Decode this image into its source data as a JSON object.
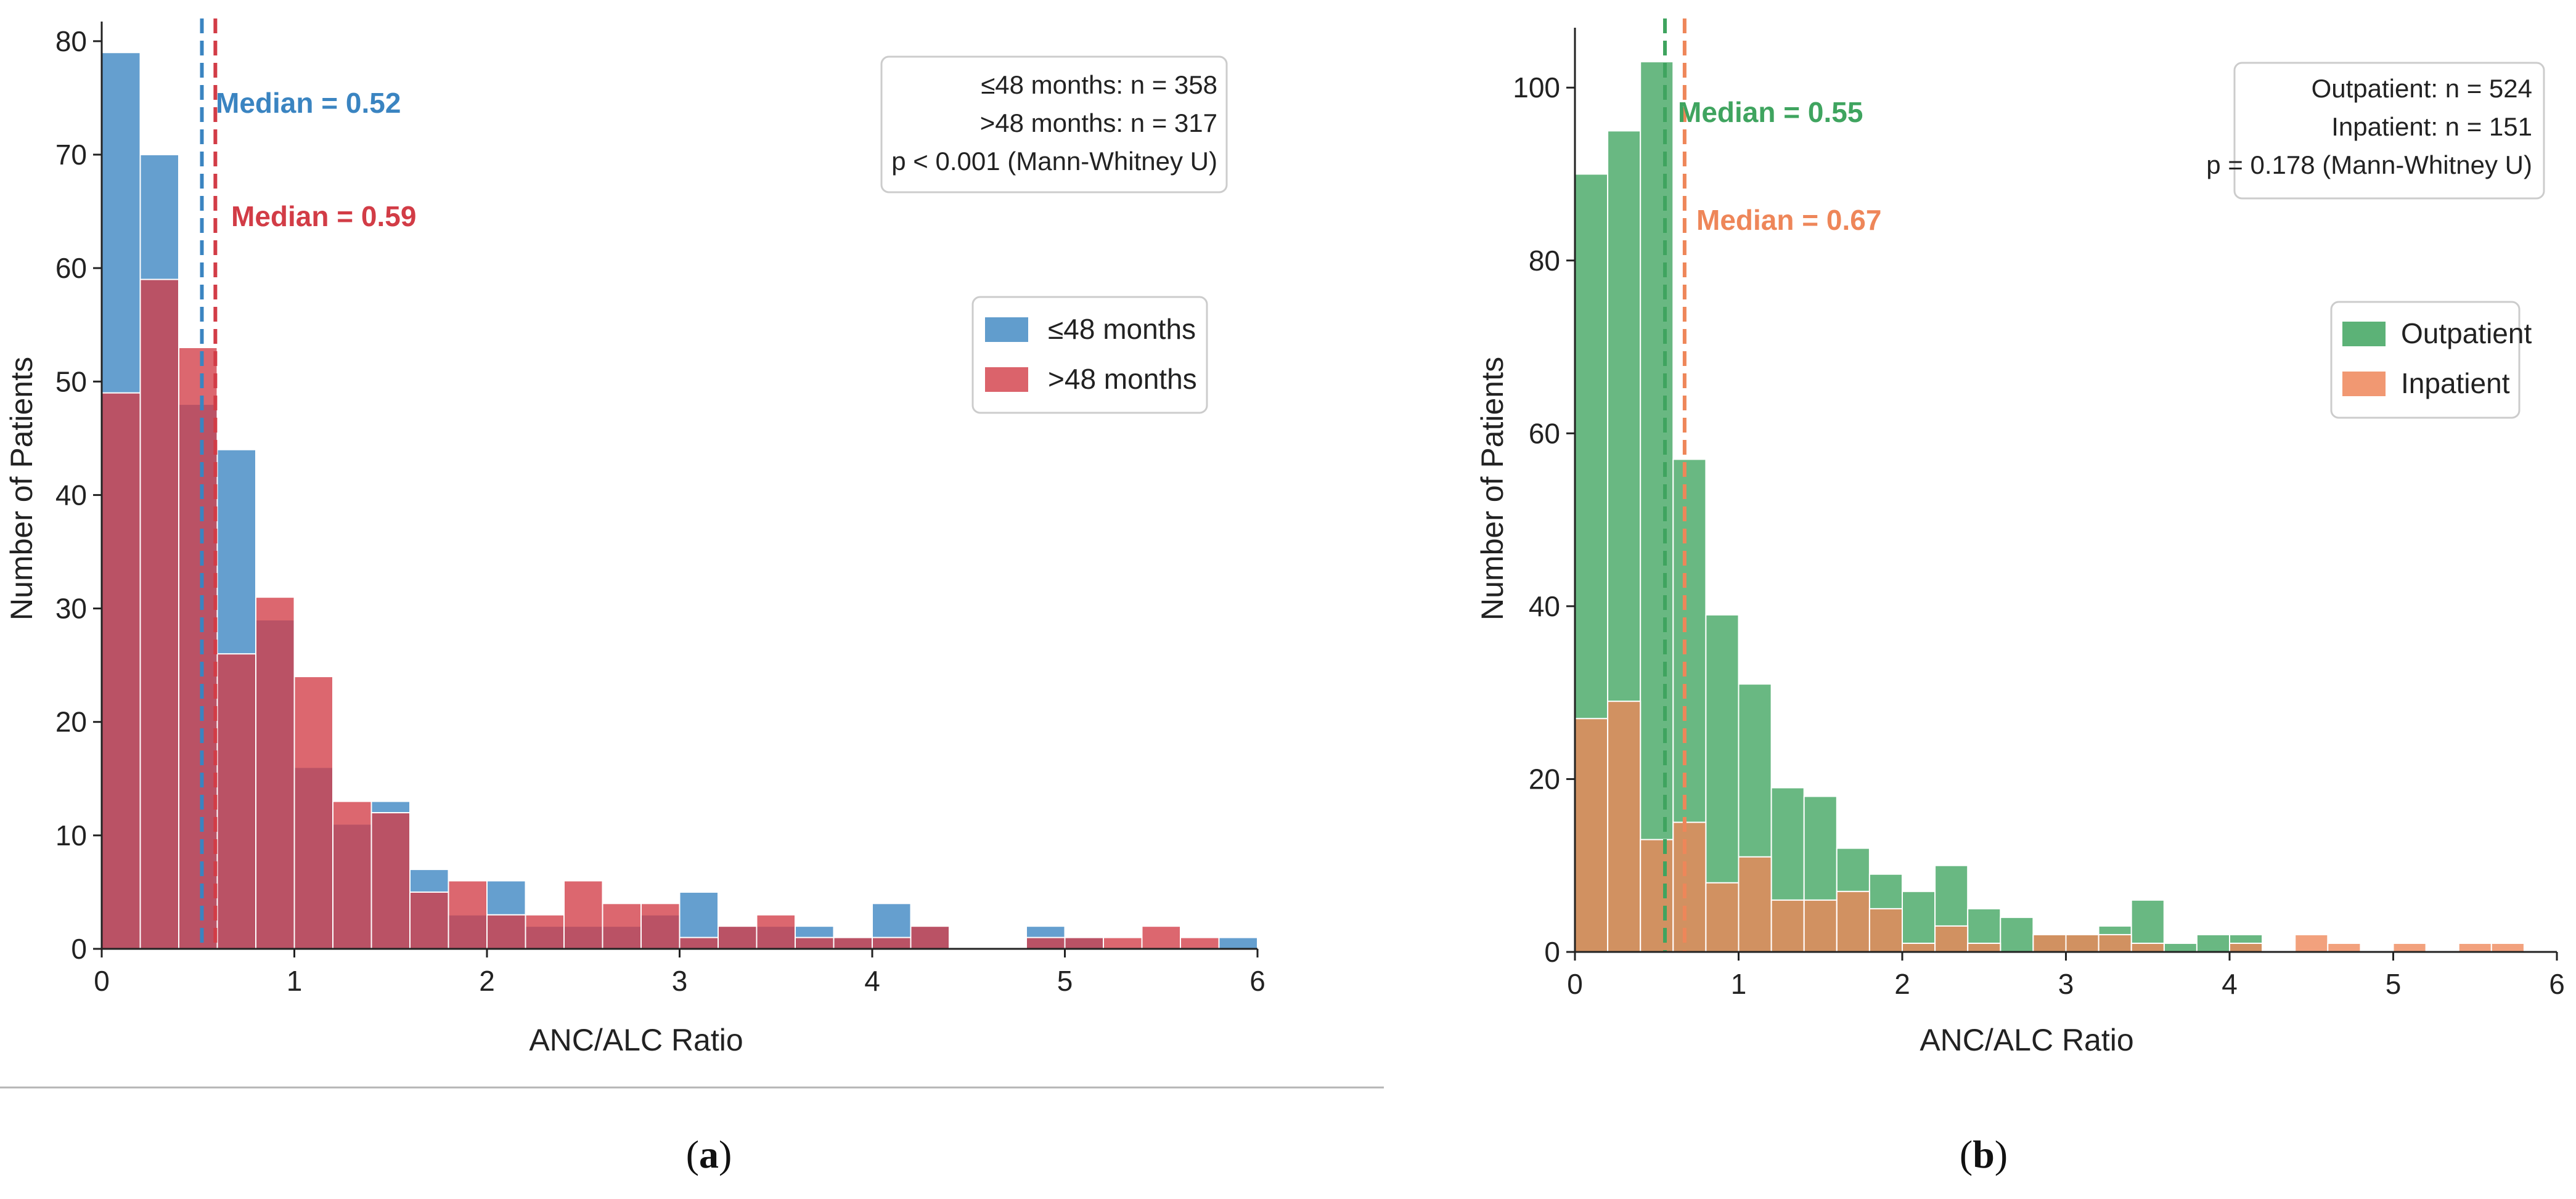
{
  "colors": {
    "blue": "#3a84c1",
    "red": "#d23c46",
    "green": "#3fa45f",
    "orange": "#ee8659"
  },
  "panel_labels": {
    "a": {
      "open": "(",
      "letter": "a",
      "close": ")"
    },
    "b": {
      "open": "(",
      "letter": "b",
      "close": ")"
    }
  },
  "chart_data": [
    {
      "type": "bar",
      "subtype": "overlaid histogram",
      "xlabel": "ANC/ALC Ratio",
      "ylabel": "Number of Patients",
      "xlim": [
        0,
        6
      ],
      "ylim": [
        0,
        82
      ],
      "xticks": [
        "0",
        "1",
        "2",
        "3",
        "4",
        "5",
        "6"
      ],
      "yticks": [
        "0",
        "10",
        "20",
        "30",
        "40",
        "50",
        "60",
        "70",
        "80"
      ],
      "bin_start": 0,
      "bin_width": 0.2,
      "series": [
        {
          "name": "≤48 months",
          "color": "#3a84c1",
          "values": [
            79,
            70,
            48,
            44,
            29,
            16,
            11,
            13,
            7,
            3,
            6,
            2,
            2,
            2,
            3,
            5,
            2,
            2,
            2,
            1,
            4,
            2,
            0,
            0,
            2,
            1,
            0,
            0,
            0,
            1
          ]
        },
        {
          "name": ">48 months",
          "color": "#d23c46",
          "values": [
            49,
            59,
            53,
            26,
            31,
            24,
            13,
            12,
            5,
            6,
            3,
            3,
            6,
            4,
            4,
            1,
            2,
            3,
            1,
            1,
            1,
            2,
            0,
            0,
            1,
            1,
            1,
            2,
            1,
            0
          ]
        }
      ],
      "medians": [
        {
          "label": "Median = 0.52",
          "value": 0.52,
          "color": "#3a84c1"
        },
        {
          "label": "Median = 0.59",
          "value": 0.59,
          "color": "#d23c46"
        }
      ],
      "stats_box": [
        "≤48 months: n = 358",
        ">48 months:  n = 317",
        "p < 0.001 (Mann-Whitney U)"
      ],
      "legend": [
        "≤48 months",
        ">48 months"
      ],
      "legend_position": "right, middle-upper",
      "grid": false
    },
    {
      "type": "bar",
      "subtype": "overlaid histogram",
      "xlabel": "ANC/ALC Ratio",
      "ylabel": "Number of Patients",
      "xlim": [
        0,
        6
      ],
      "ylim": [
        0,
        108
      ],
      "xticks": [
        "0",
        "1",
        "2",
        "3",
        "4",
        "5",
        "6"
      ],
      "yticks": [
        "0",
        "20",
        "40",
        "60",
        "80",
        "100"
      ],
      "bin_start": 0,
      "bin_width": 0.2,
      "series": [
        {
          "name": "Outpatient",
          "color": "#3fa45f",
          "values": [
            90,
            95,
            103,
            57,
            39,
            31,
            19,
            18,
            12,
            9,
            7,
            10,
            5,
            4,
            2,
            2,
            3,
            6,
            1,
            2,
            2,
            0,
            0,
            0,
            0,
            0,
            0,
            0,
            0,
            0
          ]
        },
        {
          "name": "Inpatient",
          "color": "#ee8659",
          "values": [
            27,
            29,
            13,
            15,
            8,
            11,
            6,
            6,
            7,
            5,
            1,
            3,
            1,
            0,
            2,
            2,
            2,
            1,
            0,
            0,
            1,
            0,
            2,
            1,
            0,
            1,
            0,
            1,
            1,
            0
          ]
        }
      ],
      "medians": [
        {
          "label": "Median = 0.55",
          "value": 0.55,
          "color": "#3fa45f"
        },
        {
          "label": "Median = 0.67",
          "value": 0.67,
          "color": "#ee8659"
        }
      ],
      "stats_box": [
        "Outpatient: n = 524",
        "Inpatient:    n = 151",
        "p = 0.178 (Mann-Whitney U)"
      ],
      "legend": [
        "Outpatient",
        "Inpatient"
      ],
      "legend_position": "right, middle-upper",
      "grid": false
    }
  ]
}
